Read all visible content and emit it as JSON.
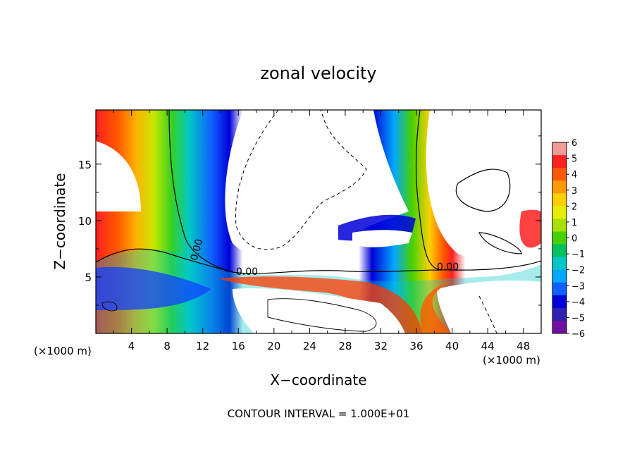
{
  "chart_data": {
    "type": "heatmap",
    "title": "zonal velocity",
    "xlabel": "X−coordinate",
    "ylabel": "Z−coordinate",
    "x_unit_left": "(×1000 m)",
    "x_unit_right": "(×1000 m)",
    "footer": "CONTOUR INTERVAL = 1.000E+01",
    "x_ticks": [
      4,
      8,
      12,
      16,
      20,
      24,
      28,
      32,
      36,
      40,
      44,
      48
    ],
    "y_ticks": [
      5,
      10,
      15
    ],
    "xlim": [
      0,
      50
    ],
    "ylim": [
      0,
      19.8
    ],
    "colorbar": {
      "ticks": [
        "6",
        "5",
        "4",
        "3",
        "2",
        "1",
        "0",
        "−1",
        "−2",
        "−3",
        "−4",
        "−5",
        "−6"
      ],
      "range": [
        -6,
        6
      ],
      "colors_top_to_bottom": [
        "#f29a9a",
        "#ff2020",
        "#ff5a00",
        "#ff9a00",
        "#ffd000",
        "#e6ee00",
        "#a8e000",
        "#48d000",
        "#00c060",
        "#00c8c8",
        "#00a8ff",
        "#1060ff",
        "#0000d8",
        "#3020b0",
        "#7010a0"
      ]
    },
    "contour_labels": [
      "0.00",
      "0.00",
      "0.00"
    ],
    "colors": {
      "background": "#ffffff",
      "frame": "#000000"
    }
  }
}
